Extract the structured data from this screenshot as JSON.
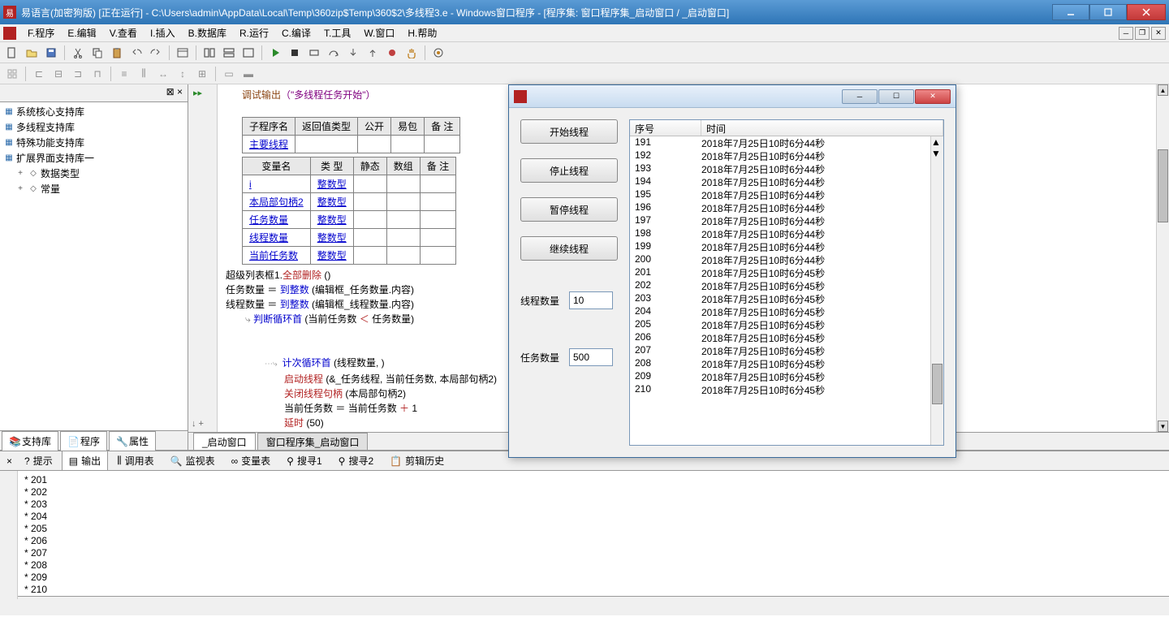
{
  "window": {
    "title": "易语言(加密狗版) [正在运行] - C:\\Users\\admin\\AppData\\Local\\Temp\\360zip$Temp\\360$2\\多线程3.e - Windows窗口程序 - [程序集: 窗口程序集_启动窗口 / _启动窗口]"
  },
  "menu": {
    "items": [
      "F.程序",
      "E.编辑",
      "V.查看",
      "I.插入",
      "B.数据库",
      "R.运行",
      "C.编译",
      "T.工具",
      "W.窗口",
      "H.帮助"
    ]
  },
  "sidebar": {
    "tree": [
      {
        "label": "系统核心支持库",
        "icon": "lib"
      },
      {
        "label": "多线程支持库",
        "icon": "lib"
      },
      {
        "label": "特殊功能支持库",
        "icon": "lib"
      },
      {
        "label": "扩展界面支持库一",
        "icon": "lib"
      },
      {
        "label": "数据类型",
        "icon": "folder",
        "indent": 1,
        "expand": "+"
      },
      {
        "label": "常量",
        "icon": "folder",
        "indent": 1,
        "expand": "+"
      }
    ],
    "bottomTabs": [
      "支持库",
      "程序",
      "属性"
    ]
  },
  "editor": {
    "tabs": [
      "_启动窗口",
      "窗口程序集_启动窗口"
    ],
    "activeTab": 0,
    "debugLine": {
      "prefix": "调试输出",
      "text": "（\"多线程任务开始\"）"
    },
    "subTable": {
      "headers": [
        "子程序名",
        "返回值类型",
        "公开",
        "易包",
        "备  注"
      ],
      "rows": [
        [
          "主要线程",
          "",
          "",
          "",
          ""
        ]
      ]
    },
    "varTable": {
      "headers": [
        "变量名",
        "类  型",
        "静态",
        "数组",
        "备  注"
      ],
      "rows": [
        [
          "i",
          "整数型",
          "",
          "",
          ""
        ],
        [
          "本局部句柄2",
          "整数型",
          "",
          "",
          ""
        ],
        [
          "任务数量",
          "整数型",
          "",
          "",
          ""
        ],
        [
          "线程数量",
          "整数型",
          "",
          "",
          ""
        ],
        [
          "当前任务数",
          "整数型",
          "",
          "",
          ""
        ]
      ]
    },
    "codeLines": [
      {
        "segs": [
          {
            "t": "超级列表框1.",
            "c": "kw-black"
          },
          {
            "t": "全部删除",
            "c": "kw-red"
          },
          {
            "t": " ()",
            "c": "kw-black"
          }
        ]
      },
      {
        "segs": [
          {
            "t": "任务数量 ",
            "c": "kw-black"
          },
          {
            "t": "＝",
            "c": "kw-black"
          },
          {
            "t": " 到整数",
            "c": "kw-blue"
          },
          {
            "t": " (编辑框_任务数量.内容)",
            "c": "kw-black"
          }
        ]
      },
      {
        "segs": [
          {
            "t": "线程数量 ",
            "c": "kw-black"
          },
          {
            "t": "＝",
            "c": "kw-black"
          },
          {
            "t": " 到整数",
            "c": "kw-blue"
          },
          {
            "t": " (编辑框_线程数量.内容)",
            "c": "kw-black"
          }
        ]
      },
      {
        "segs": [
          {
            "t": "判断循环首",
            "c": "kw-blue"
          },
          {
            "t": " (当前任务数 ",
            "c": "kw-black"
          },
          {
            "t": "＜",
            "c": "kw-red"
          },
          {
            "t": " 任务数量)",
            "c": "kw-black"
          }
        ],
        "indent": 1,
        "arrow": true
      },
      {
        "blank": true
      },
      {
        "blank": true
      },
      {
        "segs": [
          {
            "t": "计次循环首",
            "c": "kw-blue"
          },
          {
            "t": " (线程数量, )",
            "c": "kw-black"
          }
        ],
        "indent": 2,
        "dot": true
      },
      {
        "segs": [
          {
            "t": "启动线程",
            "c": "kw-red"
          },
          {
            "t": " (&_任务线程, 当前任务数, 本局部句柄2)",
            "c": "kw-black"
          }
        ],
        "indent": 3
      },
      {
        "segs": [
          {
            "t": "关闭线程句柄",
            "c": "kw-red"
          },
          {
            "t": " (本局部句柄2)",
            "c": "kw-black"
          }
        ],
        "indent": 3
      },
      {
        "segs": [
          {
            "t": "当前任务数 ",
            "c": "kw-black"
          },
          {
            "t": "＝",
            "c": "kw-black"
          },
          {
            "t": " 当前任务数 ",
            "c": "kw-black"
          },
          {
            "t": "＋",
            "c": "kw-red"
          },
          {
            "t": " 1",
            "c": "kw-black"
          }
        ],
        "indent": 3
      },
      {
        "segs": [
          {
            "t": "延时",
            "c": "kw-red"
          },
          {
            "t": " (50)",
            "c": "kw-black"
          }
        ],
        "indent": 3
      }
    ]
  },
  "outputTabs": [
    "提示",
    "输出",
    "调用表",
    "监视表",
    "变量表",
    "搜寻1",
    "搜寻2",
    "剪辑历史"
  ],
  "outputActiveTab": 1,
  "output": {
    "lines": [
      "* 201",
      "* 202",
      "* 203",
      "* 204",
      "* 205",
      "* 206",
      "* 207",
      "* 208",
      "* 209",
      "* 210"
    ]
  },
  "runtime": {
    "buttons": [
      "开始线程",
      "停止线程",
      "暂停线程",
      "继续线程"
    ],
    "fields": [
      {
        "label": "线程数量",
        "value": "10"
      },
      {
        "label": "任务数量",
        "value": "500"
      }
    ],
    "listHeaders": [
      "序号",
      "时间"
    ],
    "listRows": [
      [
        "191",
        "2018年7月25日10时6分44秒"
      ],
      [
        "192",
        "2018年7月25日10时6分44秒"
      ],
      [
        "193",
        "2018年7月25日10时6分44秒"
      ],
      [
        "194",
        "2018年7月25日10时6分44秒"
      ],
      [
        "195",
        "2018年7月25日10时6分44秒"
      ],
      [
        "196",
        "2018年7月25日10时6分44秒"
      ],
      [
        "197",
        "2018年7月25日10时6分44秒"
      ],
      [
        "198",
        "2018年7月25日10时6分44秒"
      ],
      [
        "199",
        "2018年7月25日10时6分44秒"
      ],
      [
        "200",
        "2018年7月25日10时6分44秒"
      ],
      [
        "201",
        "2018年7月25日10时6分45秒"
      ],
      [
        "202",
        "2018年7月25日10时6分45秒"
      ],
      [
        "203",
        "2018年7月25日10时6分45秒"
      ],
      [
        "204",
        "2018年7月25日10时6分45秒"
      ],
      [
        "205",
        "2018年7月25日10时6分45秒"
      ],
      [
        "206",
        "2018年7月25日10时6分45秒"
      ],
      [
        "207",
        "2018年7月25日10时6分45秒"
      ],
      [
        "208",
        "2018年7月25日10时6分45秒"
      ],
      [
        "209",
        "2018年7月25日10时6分45秒"
      ],
      [
        "210",
        "2018年7月25日10时6分45秒"
      ]
    ]
  }
}
